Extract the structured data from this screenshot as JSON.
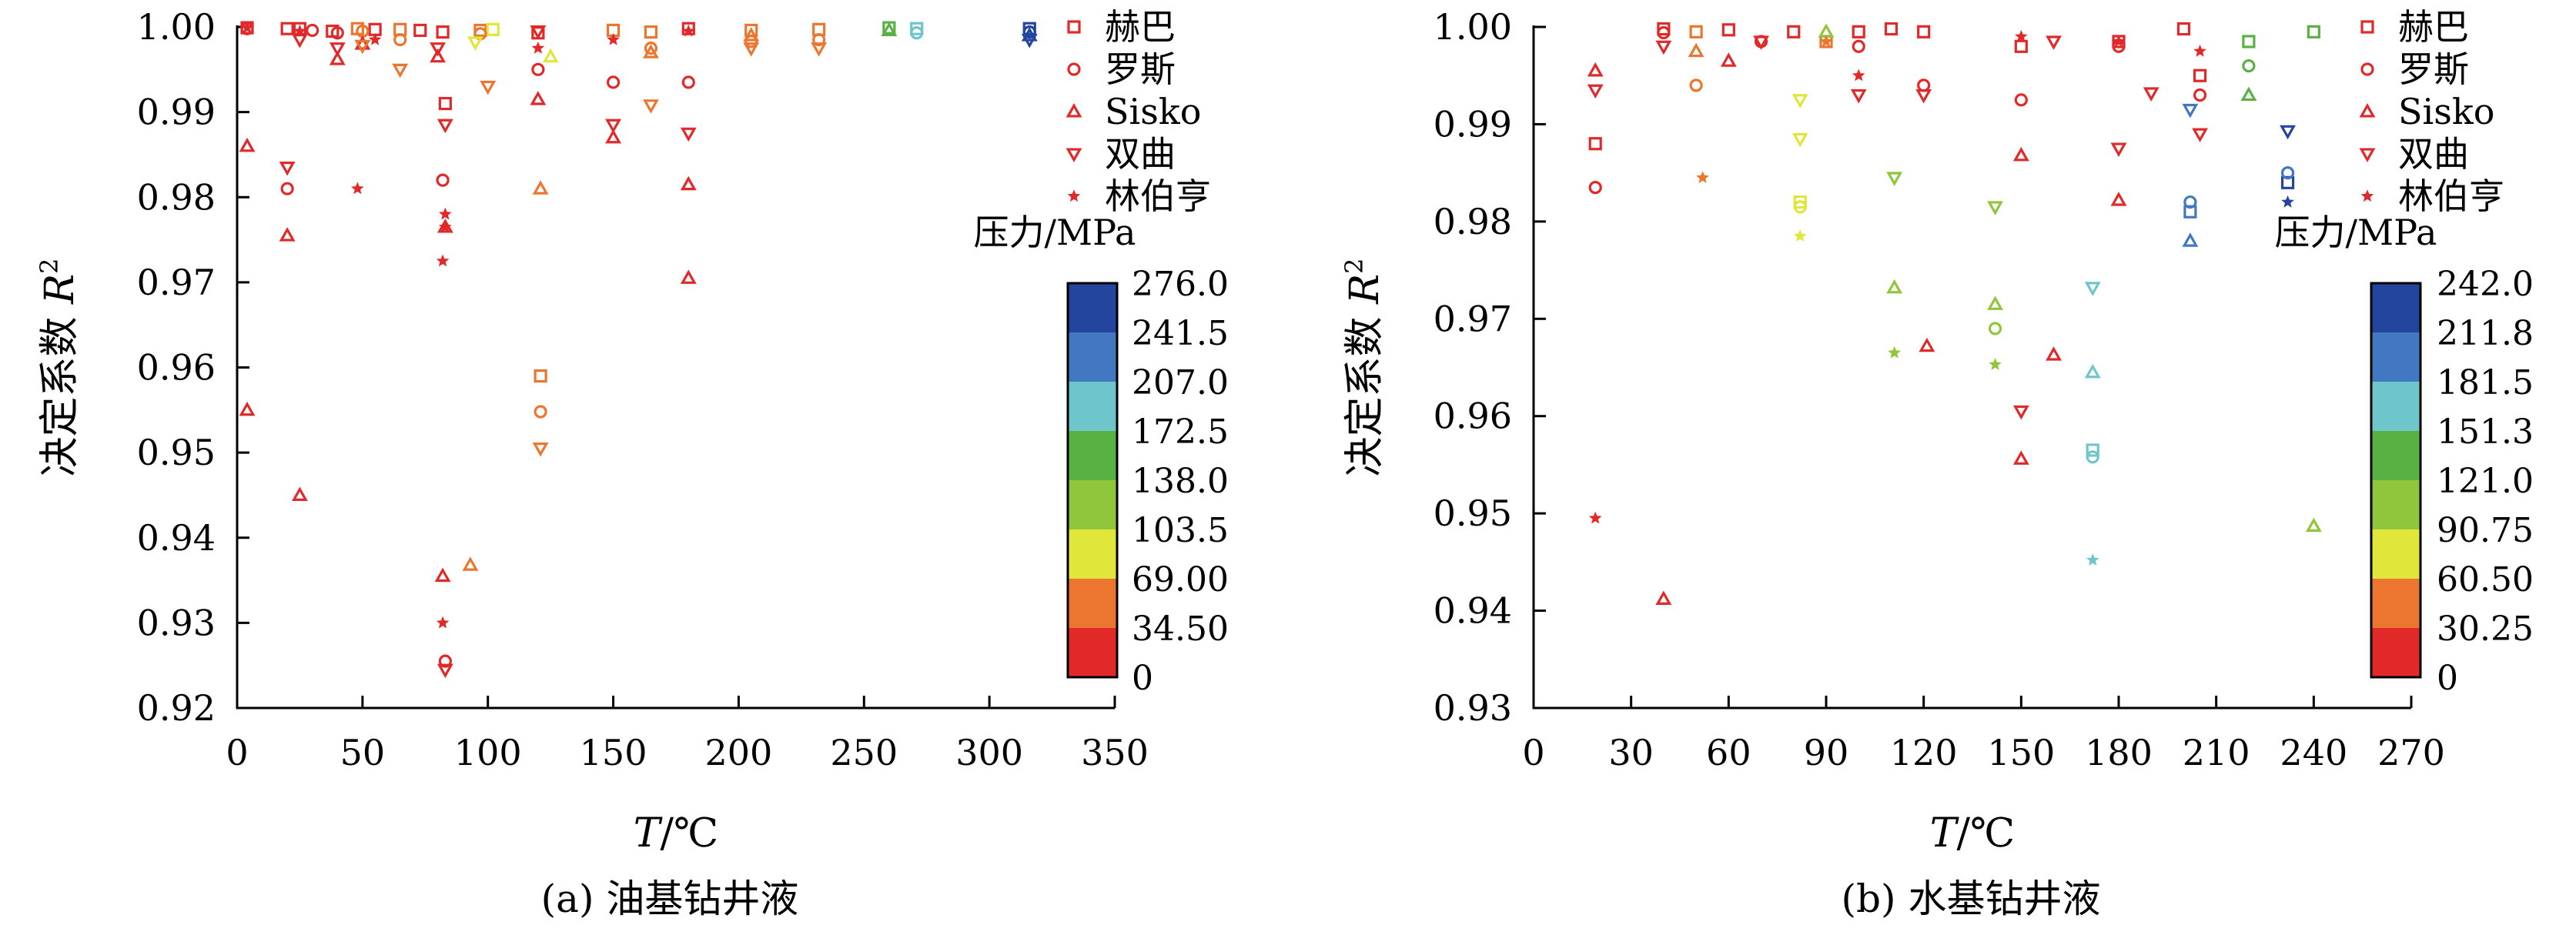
{
  "legend_items": [
    {
      "label": "赫巴",
      "marker": "square"
    },
    {
      "label": "罗斯",
      "marker": "circle"
    },
    {
      "label": "Sisko",
      "marker": "triangle-up"
    },
    {
      "label": "双曲",
      "marker": "triangle-down"
    },
    {
      "label": "林伯亨",
      "marker": "star"
    }
  ],
  "chart_data": [
    {
      "id": "a",
      "type": "scatter",
      "caption": "(a) 油基钻井液",
      "xlabel_italic": "T",
      "xlabel_unit": "/℃",
      "ylabel_text": "决定系数 ",
      "ylabel_italic": "R",
      "ylabel_sup": "2",
      "xlim": [
        0,
        350
      ],
      "ylim": [
        0.92,
        1.0
      ],
      "xticks": [
        0,
        50,
        100,
        150,
        200,
        250,
        300,
        350
      ],
      "xtick_labels": [
        "0",
        "50",
        "100",
        "150",
        "200",
        "250",
        "300",
        "350"
      ],
      "yticks": [
        0.92,
        0.93,
        0.94,
        0.95,
        0.96,
        0.97,
        0.98,
        0.99,
        1.0
      ],
      "ytick_labels": [
        "0.92",
        "0.93",
        "0.94",
        "0.95",
        "0.96",
        "0.97",
        "0.98",
        "0.99",
        "1.00"
      ],
      "colorbar": {
        "title": "压力/MPa",
        "labels": [
          "276.0",
          "241.5",
          "207.0",
          "172.5",
          "138.0",
          "103.5",
          "69.00",
          "34.50",
          "0"
        ],
        "colors": [
          "#24459d",
          "#4277c2",
          "#6ec6cb",
          "#5ab143",
          "#8fc63b",
          "#e0e63a",
          "#ec762f",
          "#e2292a"
        ]
      },
      "series": [
        {
          "marker": "square",
          "points": [
            [
              4,
              0.9999,
              "#e2292a"
            ],
            [
              20,
              0.9998,
              "#e2292a"
            ],
            [
              25,
              0.9998,
              "#e2292a"
            ],
            [
              38,
              0.9995,
              "#e2292a"
            ],
            [
              48,
              0.9998,
              "#ec762f"
            ],
            [
              55,
              0.9997,
              "#e2292a"
            ],
            [
              65,
              0.9997,
              "#ec762f"
            ],
            [
              73,
              0.9996,
              "#e2292a"
            ],
            [
              82,
              0.9994,
              "#e2292a"
            ],
            [
              83,
              0.991,
              "#e2292a"
            ],
            [
              97,
              0.9996,
              "#ec762f"
            ],
            [
              102,
              0.9997,
              "#e0e63a"
            ],
            [
              120,
              0.9993,
              "#e2292a"
            ],
            [
              121,
              0.959,
              "#ec762f"
            ],
            [
              150,
              0.9996,
              "#ec762f"
            ],
            [
              165,
              0.9994,
              "#ec762f"
            ],
            [
              180,
              0.9998,
              "#e2292a"
            ],
            [
              205,
              0.9996,
              "#ec762f"
            ],
            [
              232,
              0.9997,
              "#ec762f"
            ],
            [
              260,
              0.9999,
              "#5ab143"
            ],
            [
              271,
              0.9998,
              "#6ec6cb"
            ],
            [
              316,
              0.9998,
              "#24459d"
            ]
          ]
        },
        {
          "marker": "circle",
          "points": [
            [
              4,
              0.9998,
              "#e2292a"
            ],
            [
              20,
              0.981,
              "#e2292a"
            ],
            [
              30,
              0.9996,
              "#e2292a"
            ],
            [
              40,
              0.9993,
              "#e2292a"
            ],
            [
              50,
              0.9995,
              "#ec762f"
            ],
            [
              65,
              0.9985,
              "#ec762f"
            ],
            [
              82,
              0.982,
              "#e2292a"
            ],
            [
              83,
              0.9255,
              "#e2292a"
            ],
            [
              97,
              0.9992,
              "#ec762f"
            ],
            [
              120,
              0.995,
              "#e2292a"
            ],
            [
              121,
              0.9548,
              "#ec762f"
            ],
            [
              150,
              0.9935,
              "#e2292a"
            ],
            [
              165,
              0.9975,
              "#ec762f"
            ],
            [
              180,
              0.9935,
              "#e2292a"
            ],
            [
              205,
              0.9983,
              "#ec762f"
            ],
            [
              232,
              0.9985,
              "#ec762f"
            ],
            [
              271,
              0.9993,
              "#6ec6cb"
            ],
            [
              316,
              0.9994,
              "#24459d"
            ]
          ]
        },
        {
          "marker": "triangle-up",
          "points": [
            [
              4,
              0.986,
              "#e2292a"
            ],
            [
              4,
              0.955,
              "#e2292a"
            ],
            [
              20,
              0.9755,
              "#e2292a"
            ],
            [
              25,
              0.945,
              "#e2292a"
            ],
            [
              40,
              0.9962,
              "#e2292a"
            ],
            [
              50,
              0.998,
              "#e2292a"
            ],
            [
              80,
              0.9965,
              "#e2292a"
            ],
            [
              82,
              0.9355,
              "#e2292a"
            ],
            [
              83,
              0.9765,
              "#e2292a"
            ],
            [
              93,
              0.9368,
              "#ec762f"
            ],
            [
              120,
              0.9915,
              "#e2292a"
            ],
            [
              121,
              0.981,
              "#ec762f"
            ],
            [
              125,
              0.9965,
              "#e0e63a"
            ],
            [
              150,
              0.987,
              "#e2292a"
            ],
            [
              165,
              0.997,
              "#ec762f"
            ],
            [
              180,
              0.9815,
              "#e2292a"
            ],
            [
              180,
              0.9705,
              "#e2292a"
            ],
            [
              205,
              0.999,
              "#ec762f"
            ],
            [
              260,
              0.9996,
              "#5ab143"
            ],
            [
              316,
              0.999,
              "#24459d"
            ]
          ]
        },
        {
          "marker": "triangle-down",
          "points": [
            [
              20,
              0.9835,
              "#e2292a"
            ],
            [
              25,
              0.9985,
              "#e2292a"
            ],
            [
              40,
              0.9975,
              "#e2292a"
            ],
            [
              50,
              0.9978,
              "#ec762f"
            ],
            [
              65,
              0.995,
              "#ec762f"
            ],
            [
              80,
              0.9975,
              "#e2292a"
            ],
            [
              83,
              0.9885,
              "#e2292a"
            ],
            [
              83,
              0.9245,
              "#e2292a"
            ],
            [
              95,
              0.9982,
              "#e0e63a"
            ],
            [
              100,
              0.993,
              "#ec762f"
            ],
            [
              120,
              0.9995,
              "#e2292a"
            ],
            [
              121,
              0.9505,
              "#ec762f"
            ],
            [
              150,
              0.9885,
              "#e2292a"
            ],
            [
              165,
              0.9908,
              "#ec762f"
            ],
            [
              180,
              0.9875,
              "#e2292a"
            ],
            [
              205,
              0.9975,
              "#ec762f"
            ],
            [
              232,
              0.9975,
              "#ec762f"
            ],
            [
              316,
              0.9985,
              "#24459d"
            ]
          ]
        },
        {
          "marker": "star",
          "points": [
            [
              4,
              0.9999,
              "#e2292a"
            ],
            [
              25,
              0.9995,
              "#e2292a"
            ],
            [
              48,
              0.981,
              "#e2292a"
            ],
            [
              55,
              0.9985,
              "#e2292a"
            ],
            [
              82,
              0.9725,
              "#e2292a"
            ],
            [
              82,
              0.93,
              "#e2292a"
            ],
            [
              83,
              0.978,
              "#e2292a"
            ],
            [
              83,
              0.9765,
              "#e2292a"
            ],
            [
              120,
              0.9975,
              "#e2292a"
            ],
            [
              150,
              0.9985,
              "#e2292a"
            ],
            [
              180,
              0.9995,
              "#e2292a"
            ]
          ]
        }
      ]
    },
    {
      "id": "b",
      "type": "scatter",
      "caption": "(b) 水基钻井液",
      "xlabel_italic": "T",
      "xlabel_unit": "/℃",
      "ylabel_text": "决定系数 ",
      "ylabel_italic": "R",
      "ylabel_sup": "2",
      "xlim": [
        0,
        270
      ],
      "ylim": [
        0.93,
        1.0
      ],
      "xticks": [
        0,
        30,
        60,
        90,
        120,
        150,
        180,
        210,
        240,
        270
      ],
      "xtick_labels": [
        "0",
        "30",
        "60",
        "90",
        "120",
        "150",
        "180",
        "210",
        "240",
        "270"
      ],
      "yticks": [
        0.93,
        0.94,
        0.95,
        0.96,
        0.97,
        0.98,
        0.99,
        1.0
      ],
      "ytick_labels": [
        "0.93",
        "0.94",
        "0.95",
        "0.96",
        "0.97",
        "0.98",
        "0.99",
        "1.00"
      ],
      "colorbar": {
        "title": "压力/MPa",
        "labels": [
          "242.0",
          "211.8",
          "181.5",
          "151.3",
          "121.0",
          "90.75",
          "60.50",
          "30.25",
          "0"
        ],
        "colors": [
          "#24459d",
          "#4277c2",
          "#6ec6cb",
          "#5ab143",
          "#8fc63b",
          "#e0e63a",
          "#ec762f",
          "#e2292a"
        ]
      },
      "series": [
        {
          "marker": "square",
          "points": [
            [
              19,
              0.988,
              "#e2292a"
            ],
            [
              40,
              0.9998,
              "#e2292a"
            ],
            [
              50,
              0.9995,
              "#ec762f"
            ],
            [
              60,
              0.9997,
              "#e2292a"
            ],
            [
              80,
              0.9995,
              "#e2292a"
            ],
            [
              82,
              0.982,
              "#e0e63a"
            ],
            [
              90,
              0.9985,
              "#ec762f"
            ],
            [
              100,
              0.9995,
              "#e2292a"
            ],
            [
              110,
              0.9998,
              "#e2292a"
            ],
            [
              120,
              0.9995,
              "#e2292a"
            ],
            [
              150,
              0.998,
              "#e2292a"
            ],
            [
              172,
              0.9565,
              "#6ec6cb"
            ],
            [
              180,
              0.9985,
              "#e2292a"
            ],
            [
              200,
              0.9998,
              "#e2292a"
            ],
            [
              202,
              0.981,
              "#4277c2"
            ],
            [
              205,
              0.995,
              "#e2292a"
            ],
            [
              220,
              0.9985,
              "#5ab143"
            ],
            [
              232,
              0.984,
              "#24459d"
            ],
            [
              240,
              0.9995,
              "#5ab143"
            ]
          ]
        },
        {
          "marker": "circle",
          "points": [
            [
              19,
              0.9835,
              "#e2292a"
            ],
            [
              40,
              0.9994,
              "#e2292a"
            ],
            [
              50,
              0.994,
              "#ec762f"
            ],
            [
              70,
              0.9985,
              "#e2292a"
            ],
            [
              82,
              0.9815,
              "#e0e63a"
            ],
            [
              100,
              0.998,
              "#e2292a"
            ],
            [
              120,
              0.994,
              "#e2292a"
            ],
            [
              142,
              0.969,
              "#8fc63b"
            ],
            [
              150,
              0.9925,
              "#e2292a"
            ],
            [
              172,
              0.9558,
              "#6ec6cb"
            ],
            [
              180,
              0.998,
              "#e2292a"
            ],
            [
              202,
              0.982,
              "#4277c2"
            ],
            [
              205,
              0.993,
              "#e2292a"
            ],
            [
              220,
              0.996,
              "#5ab143"
            ],
            [
              232,
              0.985,
              "#4277c2"
            ]
          ]
        },
        {
          "marker": "triangle-up",
          "points": [
            [
              19,
              0.9955,
              "#e2292a"
            ],
            [
              40,
              0.9412,
              "#e2292a"
            ],
            [
              50,
              0.9975,
              "#ec762f"
            ],
            [
              60,
              0.9965,
              "#e2292a"
            ],
            [
              90,
              0.9995,
              "#8fc63b"
            ],
            [
              111,
              0.9732,
              "#8fc63b"
            ],
            [
              121,
              0.9672,
              "#e2292a"
            ],
            [
              142,
              0.9715,
              "#8fc63b"
            ],
            [
              150,
              0.9868,
              "#e2292a"
            ],
            [
              150,
              0.9556,
              "#e2292a"
            ],
            [
              160,
              0.9663,
              "#e2292a"
            ],
            [
              172,
              0.9645,
              "#6ec6cb"
            ],
            [
              180,
              0.9822,
              "#e2292a"
            ],
            [
              202,
              0.978,
              "#4277c2"
            ],
            [
              220,
              0.993,
              "#5ab143"
            ],
            [
              240,
              0.9487,
              "#8fc63b"
            ]
          ]
        },
        {
          "marker": "triangle-down",
          "points": [
            [
              19,
              0.9935,
              "#e2292a"
            ],
            [
              40,
              0.998,
              "#e2292a"
            ],
            [
              70,
              0.9985,
              "#e2292a"
            ],
            [
              82,
              0.9925,
              "#e0e63a"
            ],
            [
              82,
              0.9885,
              "#e0e63a"
            ],
            [
              100,
              0.993,
              "#e2292a"
            ],
            [
              111,
              0.9845,
              "#8fc63b"
            ],
            [
              120,
              0.993,
              "#e2292a"
            ],
            [
              142,
              0.9815,
              "#8fc63b"
            ],
            [
              150,
              0.9605,
              "#e2292a"
            ],
            [
              160,
              0.9985,
              "#e2292a"
            ],
            [
              172,
              0.9732,
              "#6ec6cb"
            ],
            [
              180,
              0.9875,
              "#e2292a"
            ],
            [
              190,
              0.9932,
              "#e2292a"
            ],
            [
              202,
              0.9915,
              "#4277c2"
            ],
            [
              205,
              0.989,
              "#e2292a"
            ],
            [
              232,
              0.9893,
              "#24459d"
            ]
          ]
        },
        {
          "marker": "star",
          "points": [
            [
              19,
              0.9495,
              "#e2292a"
            ],
            [
              52,
              0.9845,
              "#ec762f"
            ],
            [
              82,
              0.9785,
              "#e0e63a"
            ],
            [
              90,
              0.9985,
              "#ec762f"
            ],
            [
              100,
              0.995,
              "#e2292a"
            ],
            [
              111,
              0.9665,
              "#8fc63b"
            ],
            [
              142,
              0.9653,
              "#8fc63b"
            ],
            [
              150,
              0.999,
              "#e2292a"
            ],
            [
              172,
              0.9452,
              "#6ec6cb"
            ],
            [
              180,
              0.9985,
              "#e2292a"
            ],
            [
              205,
              0.9975,
              "#e2292a"
            ],
            [
              232,
              0.982,
              "#24459d"
            ]
          ]
        }
      ]
    }
  ]
}
